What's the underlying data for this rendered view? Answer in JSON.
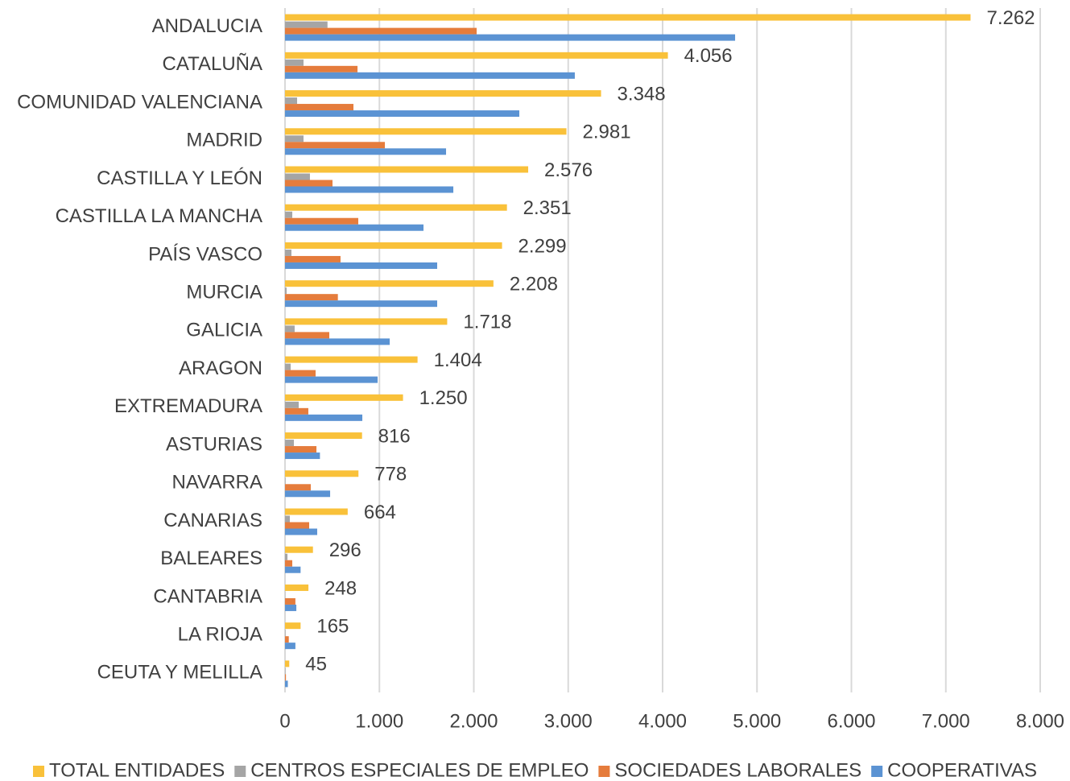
{
  "chart_data": {
    "type": "hbar",
    "categories": [
      "ANDALUCIA",
      "CATALUÑA",
      "COMUNIDAD VALENCIANA",
      "MADRID",
      "CASTILLA Y LEÓN",
      "CASTILLA LA MANCHA",
      "PAÍS VASCO",
      "MURCIA",
      "GALICIA",
      "ARAGON",
      "EXTREMADURA",
      "ASTURIAS",
      "NAVARRA",
      "CANARIAS",
      "BALEARES",
      "CANTABRIA",
      "LA RIOJA",
      "CEUTA Y MELILLA"
    ],
    "series": [
      {
        "name": "TOTAL ENTIDADES",
        "color": "#f9c13a",
        "values": [
          7262,
          4056,
          3348,
          2981,
          2576,
          2351,
          2299,
          2208,
          1718,
          1404,
          1250,
          816,
          778,
          664,
          296,
          248,
          165,
          45
        ],
        "value_labels": [
          "7.262",
          "4.056",
          "3.348",
          "2.981",
          "2.576",
          "2.351",
          "2.299",
          "2.208",
          "1.718",
          "1.404",
          "1.250",
          "816",
          "778",
          "664",
          "296",
          "248",
          "165",
          "45"
        ]
      },
      {
        "name": "CENTROS ESPECIALES DE EMPLEO",
        "color": "#a5a5a5",
        "values": [
          450,
          196,
          128,
          196,
          264,
          77,
          68,
          17,
          102,
          60,
          145,
          94,
          5,
          51,
          26,
          2,
          5,
          5
        ]
      },
      {
        "name": "SOCIEDADES LABORALES",
        "color": "#e57c3c",
        "values": [
          2030,
          768,
          725,
          1058,
          503,
          776,
          588,
          560,
          469,
          324,
          247,
          333,
          273,
          256,
          77,
          110,
          40,
          10
        ]
      },
      {
        "name": "COOPERATIVAS",
        "color": "#5b93d3",
        "values": [
          4768,
          3070,
          2482,
          1706,
          1783,
          1467,
          1612,
          1612,
          1109,
          981,
          819,
          370,
          478,
          341,
          165,
          120,
          110,
          30
        ]
      }
    ],
    "xlim": [
      0,
      8000
    ],
    "xticks": [
      0,
      {
        "value": 1000,
        "label": "1.000"
      },
      {
        "value": 2000,
        "label": "2.000"
      },
      {
        "value": 3000,
        "label": "3.000"
      },
      {
        "value": 4000,
        "label": "4.000"
      },
      {
        "value": 5000,
        "label": "5.000"
      },
      {
        "value": 6000,
        "label": "6.000"
      },
      {
        "value": 7000,
        "label": "7.000"
      },
      {
        "value": 8000,
        "label": "8.000"
      }
    ],
    "grid": true,
    "legend": "bottom"
  }
}
